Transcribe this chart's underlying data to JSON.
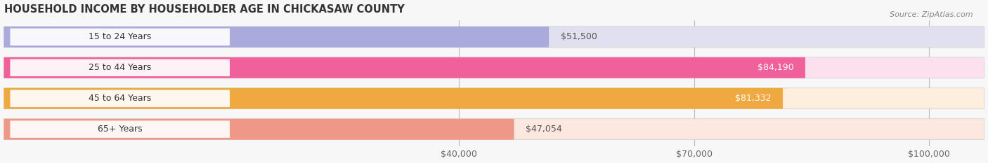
{
  "title": "HOUSEHOLD INCOME BY HOUSEHOLDER AGE IN CHICKASAW COUNTY",
  "source": "Source: ZipAtlas.com",
  "categories": [
    "15 to 24 Years",
    "25 to 44 Years",
    "45 to 64 Years",
    "65+ Years"
  ],
  "values": [
    51500,
    84190,
    81332,
    47054
  ],
  "bar_colors": [
    "#aaaadd",
    "#f0609a",
    "#f0a840",
    "#f09888"
  ],
  "bar_bg_colors": [
    "#e0e0f0",
    "#fde0ee",
    "#fdeedd",
    "#fde8e0"
  ],
  "value_labels": [
    "$51,500",
    "$84,190",
    "$81,332",
    "$47,054"
  ],
  "xlim_min": -18000,
  "xlim_max": 107000,
  "xticks": [
    40000,
    70000,
    100000
  ],
  "xticklabels": [
    "$40,000",
    "$70,000",
    "$100,000"
  ],
  "title_fontsize": 10.5,
  "source_fontsize": 8,
  "label_fontsize": 9,
  "tick_fontsize": 9,
  "bar_height": 0.68,
  "figsize": [
    14.06,
    2.33
  ],
  "dpi": 100,
  "bg_color": "#f7f7f7"
}
